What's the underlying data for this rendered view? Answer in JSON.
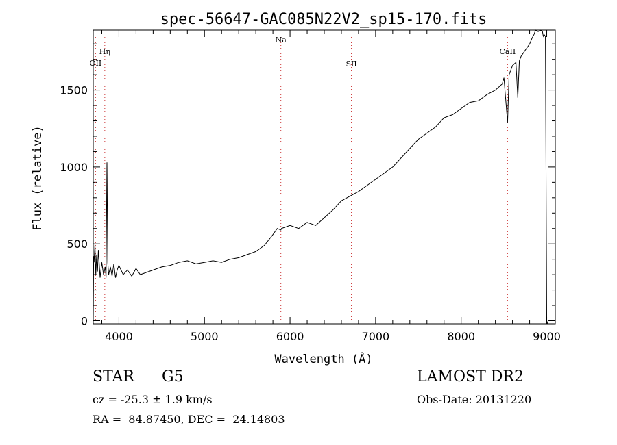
{
  "chart_data": {
    "type": "line",
    "title": "spec-56647-GAC085N22V2_sp15-170.fits",
    "xlabel": "Wavelength (Å)",
    "ylabel": "Flux (relative)",
    "xlim": [
      3700,
      9100
    ],
    "ylim": [
      -20,
      1890
    ],
    "xticks": [
      4000,
      5000,
      6000,
      7000,
      8000,
      9000
    ],
    "xtick_labels": [
      "4000",
      "5000",
      "6000",
      "7000",
      "8000",
      "9000"
    ],
    "yticks": [
      0,
      500,
      1000,
      1500
    ],
    "ytick_labels": [
      "0",
      "500",
      "1000",
      "1500"
    ],
    "line_color": "#000000",
    "marker_color": "#cc3333",
    "lines": [
      {
        "name": "OII",
        "wavelength": 3727
      },
      {
        "name": "Hη",
        "wavelength": 3835
      },
      {
        "name": "Na",
        "wavelength": 5893
      },
      {
        "name": "SII",
        "wavelength": 6717
      },
      {
        "name": "CaII",
        "wavelength": 8542
      }
    ],
    "series": [
      {
        "x": [
          3700,
          3705,
          3710,
          3720,
          3730,
          3740,
          3750,
          3760,
          3780,
          3800,
          3820,
          3840,
          3850,
          3860,
          3870,
          3880,
          3900,
          3920,
          3940,
          3960,
          3980,
          4000,
          4050,
          4100,
          4150,
          4200,
          4250,
          4300,
          4350,
          4400,
          4500,
          4600,
          4700,
          4800,
          4900,
          5000,
          5100,
          5200,
          5300,
          5400,
          5500,
          5600,
          5700,
          5800,
          5850,
          5893,
          5900,
          5950,
          6000,
          6100,
          6200,
          6300,
          6400,
          6500,
          6600,
          6700,
          6800,
          6900,
          7000,
          7100,
          7200,
          7300,
          7400,
          7500,
          7600,
          7700,
          7800,
          7900,
          8000,
          8100,
          8200,
          8300,
          8400,
          8480,
          8500,
          8542,
          8560,
          8600,
          8640,
          8662,
          8680,
          8700,
          8750,
          8800,
          8830,
          8850,
          8870,
          8900,
          8930,
          8950,
          8960,
          8970,
          8985,
          9000,
          9010
        ],
        "y": [
          0,
          420,
          380,
          500,
          300,
          430,
          320,
          460,
          280,
          380,
          300,
          350,
          280,
          1030,
          380,
          300,
          350,
          290,
          370,
          280,
          330,
          360,
          300,
          330,
          290,
          340,
          300,
          310,
          320,
          330,
          350,
          360,
          380,
          390,
          370,
          380,
          390,
          380,
          400,
          410,
          430,
          450,
          490,
          560,
          600,
          590,
          600,
          610,
          620,
          600,
          640,
          620,
          670,
          720,
          780,
          810,
          840,
          880,
          920,
          960,
          1000,
          1060,
          1120,
          1180,
          1220,
          1260,
          1320,
          1340,
          1380,
          1420,
          1430,
          1470,
          1500,
          1540,
          1580,
          1290,
          1600,
          1660,
          1680,
          1450,
          1690,
          1720,
          1760,
          1800,
          1840,
          1860,
          1890,
          1880,
          1900,
          1880,
          1850,
          1860,
          1850,
          0,
          -20
        ]
      }
    ]
  },
  "info": {
    "obj_type": "STAR",
    "obj_class": "G5",
    "cz": "cz = -25.3 ± 1.9 km/s",
    "radec": "RA =  84.87450, DEC =  24.14803",
    "survey": "LAMOST DR2",
    "obs_date": "Obs-Date: 20131220"
  }
}
